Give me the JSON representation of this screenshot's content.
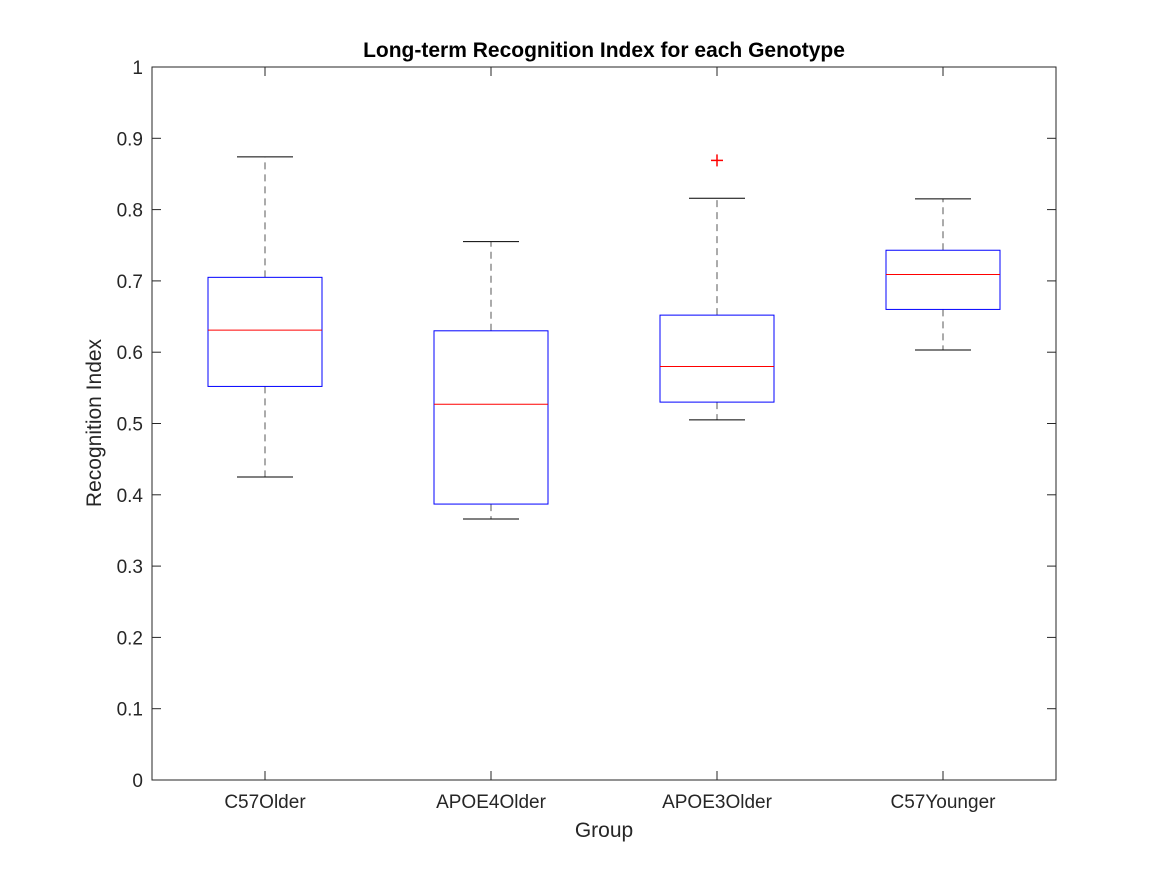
{
  "chart_data": {
    "type": "box",
    "title": "Long-term Recognition Index for each Genotype",
    "xlabel": "Group",
    "ylabel": "Recognition Index",
    "ylim": [
      0,
      1
    ],
    "yticks": [
      "0",
      "0.1",
      "0.2",
      "0.3",
      "0.4",
      "0.5",
      "0.6",
      "0.7",
      "0.8",
      "0.9",
      "1"
    ],
    "categories": [
      "C57Older",
      "APOE4Older",
      "APOE3Older",
      "C57Younger"
    ],
    "boxes": [
      {
        "whisker_low": 0.425,
        "q1": 0.552,
        "median": 0.631,
        "q3": 0.705,
        "whisker_high": 0.874,
        "outliers": []
      },
      {
        "whisker_low": 0.366,
        "q1": 0.387,
        "median": 0.527,
        "q3": 0.63,
        "whisker_high": 0.755,
        "outliers": []
      },
      {
        "whisker_low": 0.505,
        "q1": 0.53,
        "median": 0.58,
        "q3": 0.652,
        "whisker_high": 0.816,
        "outliers": [
          0.869
        ]
      },
      {
        "whisker_low": 0.603,
        "q1": 0.66,
        "median": 0.709,
        "q3": 0.743,
        "whisker_high": 0.815,
        "outliers": []
      }
    ],
    "grid": false,
    "colors": {
      "box": "#0000ff",
      "median": "#ff0000",
      "whisker": "#000000",
      "outlier": "#ff0000",
      "axis": "#262626"
    }
  }
}
